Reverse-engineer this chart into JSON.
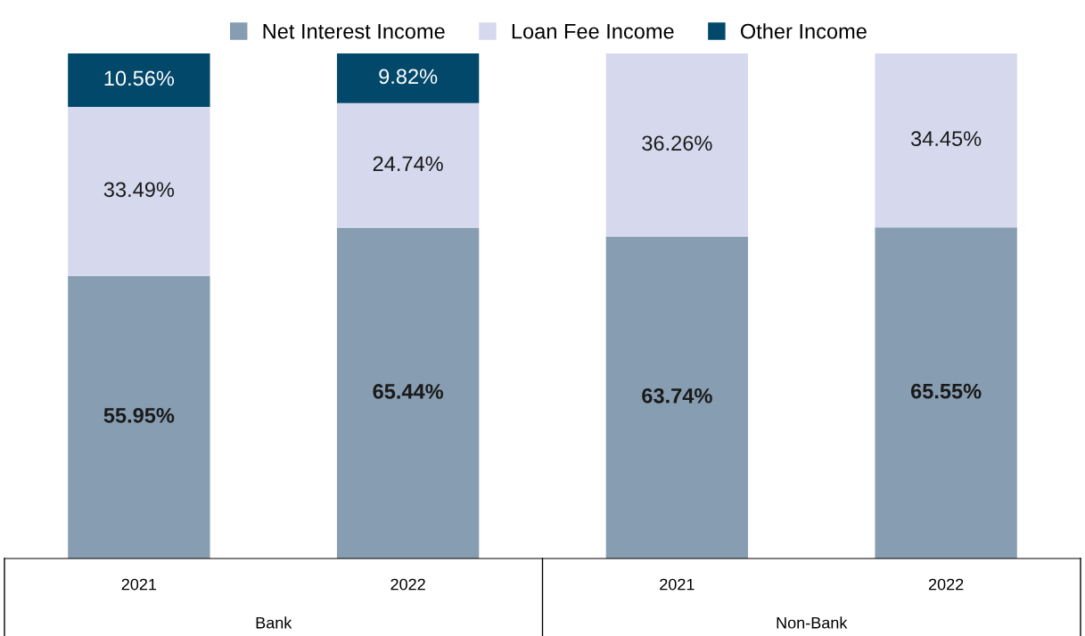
{
  "chart_data": {
    "type": "bar",
    "stacked": true,
    "categories": [
      "2021",
      "2022",
      "2021",
      "2022"
    ],
    "series": [
      {
        "name": "Net Interest Income",
        "color": "#879db1",
        "values": [
          55.95,
          65.44,
          63.74,
          65.55
        ],
        "value_labels": [
          "55.95%",
          "65.44%",
          "63.74%",
          "65.55%"
        ]
      },
      {
        "name": "Loan Fee Income",
        "color": "#d6d9ee",
        "values": [
          33.49,
          24.74,
          36.26,
          34.45
        ],
        "value_labels": [
          "33.49%",
          "24.74%",
          "36.26%",
          "34.45%"
        ]
      },
      {
        "name": "Other Income",
        "color": "#02486a",
        "values": [
          10.56,
          9.82,
          null,
          null
        ],
        "value_labels": [
          "10.56%",
          "9.82%",
          null,
          null
        ]
      }
    ],
    "ylim": [
      0,
      100
    ],
    "tick_labels": "x",
    "legend": "top",
    "grid": false,
    "annotations": [
      "Bank",
      "Non-Bank"
    ]
  }
}
